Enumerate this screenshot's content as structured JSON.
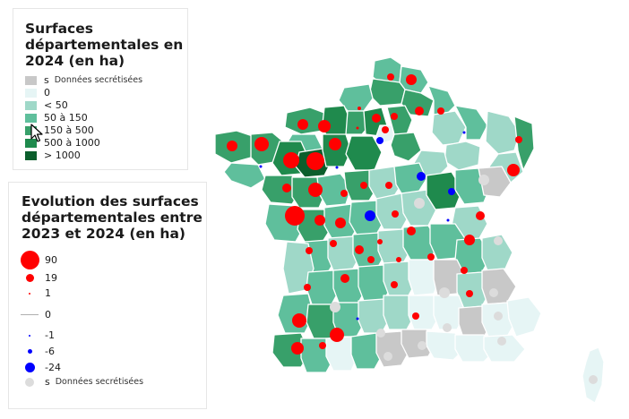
{
  "legend_surface": {
    "title": "Surfaces\ndépartementales en\n2024 (en ha)",
    "items": [
      {
        "code": "s",
        "label": "Données secrétisées",
        "color": "#c8c8c8"
      },
      {
        "code": "",
        "label": "0",
        "color": "#e6f5f5"
      },
      {
        "code": "",
        "label": "< 50",
        "color": "#9fd8c8"
      },
      {
        "code": "",
        "label": "50 à 150",
        "color": "#5fbf9c"
      },
      {
        "code": "",
        "label": "150 à 500",
        "color": "#38a06a"
      },
      {
        "code": "",
        "label": "500 à 1000",
        "color": "#1f8a4d"
      },
      {
        "code": "",
        "label": "> 1000",
        "color": "#0b5e2c"
      }
    ]
  },
  "legend_evolution": {
    "title": "Evolution des surfaces\ndépartementales entre\n2023 et 2024 (en ha)",
    "items": [
      {
        "value": "90",
        "symbol": "increase",
        "color": "#ff0000"
      },
      {
        "value": "19",
        "symbol": "increase",
        "color": "#ff0000"
      },
      {
        "value": "1",
        "symbol": "increase",
        "color": "#ff0000"
      },
      {
        "value": "0",
        "symbol": "zero",
        "color": "#b0b0b0"
      },
      {
        "value": "-1",
        "symbol": "decrease",
        "color": "#0000ff"
      },
      {
        "value": "-6",
        "symbol": "decrease",
        "color": "#0000ff"
      },
      {
        "value": "-24",
        "symbol": "decrease",
        "color": "#0000ff"
      },
      {
        "value": "s",
        "symbol": "secret",
        "label": "Données secrétisées",
        "color": "#dcdcdc"
      }
    ]
  },
  "colors": {
    "increase": "#ff0000",
    "decrease": "#0000ff",
    "secret_dot": "#dcdcdc",
    "region_border": "#ffffff"
  },
  "icons": {
    "cursor": "arrow-cursor-icon"
  }
}
